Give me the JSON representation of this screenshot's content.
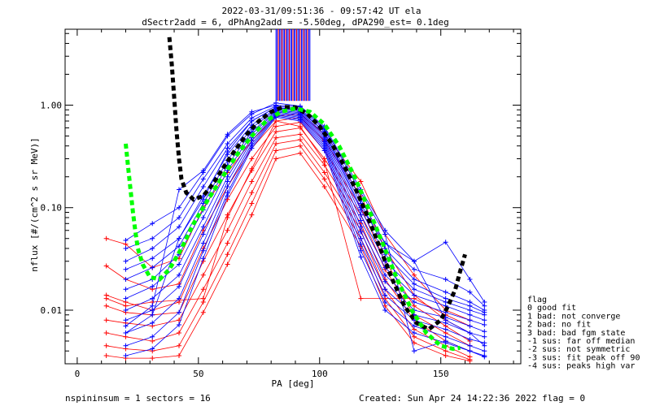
{
  "title_line1": "2022-03-31/09:51:36 - 09:57:42 UT ela",
  "title_line2": "dSectr2add = 6, dPhAng2add = -5.50deg, dPA290_est=   0.1deg",
  "footer_left": "nspininsum =  1  sectors = 16",
  "footer_right": "Created: Sun Apr 24 14:22:36 2022   flag = 0",
  "flag_legend": [
    "flag",
    " 0 good fit",
    " 1 bad: not converge",
    " 2 bad: no fit",
    " 3 bad: bad fgm state",
    "-1 sus: far off median",
    "-2 sus: not symmetric",
    "-3 sus: fit peak off 90",
    "-4 sus: peaks high var"
  ],
  "colors": {
    "red": "#ff0000",
    "blue": "#0000ff",
    "black": "#000000",
    "green": "#00ff00"
  },
  "chart_data": {
    "type": "line",
    "xlabel": "PA [deg]",
    "ylabel": "nflux [#/(cm^2 s sr MeV)]",
    "xlim": [
      -5,
      183
    ],
    "ylim": [
      0.003,
      5.5
    ],
    "yscale": "log",
    "xticks": [
      0,
      50,
      100,
      150
    ],
    "yticks": [
      0.01,
      0.1,
      1.0
    ],
    "ytick_labels": [
      "0.01",
      "0.10",
      "1.00"
    ],
    "series": [
      {
        "color": "red",
        "x": [
          12,
          20,
          31,
          42,
          52,
          62,
          72,
          82,
          92,
          102,
          117,
          127,
          139,
          152,
          162
        ],
        "y": [
          0.05,
          0.044,
          0.026,
          0.032,
          0.1,
          0.22,
          0.45,
          0.78,
          0.82,
          0.52,
          0.18,
          0.055,
          0.022,
          0.01,
          0.008
        ]
      },
      {
        "color": "red",
        "x": [
          12,
          20,
          31,
          42,
          52,
          62,
          72,
          82,
          92,
          102,
          117,
          127,
          139,
          152,
          162
        ],
        "y": [
          0.027,
          0.02,
          0.016,
          0.018,
          0.06,
          0.16,
          0.38,
          0.7,
          0.76,
          0.45,
          0.13,
          0.04,
          0.014,
          0.008,
          0.006
        ]
      },
      {
        "color": "red",
        "x": [
          12,
          20,
          31,
          42,
          52,
          62,
          72,
          82,
          92,
          102,
          117,
          127,
          139,
          152,
          162
        ],
        "y": [
          0.014,
          0.012,
          0.01,
          0.012,
          0.04,
          0.12,
          0.3,
          0.62,
          0.68,
          0.36,
          0.1,
          0.03,
          0.011,
          0.007,
          0.005
        ]
      },
      {
        "color": "red",
        "x": [
          12,
          20,
          31,
          42,
          52,
          62,
          72,
          82,
          92,
          102,
          117,
          127,
          139,
          152,
          162
        ],
        "y": [
          0.011,
          0.0095,
          0.009,
          0.0095,
          0.03,
          0.085,
          0.23,
          0.55,
          0.6,
          0.3,
          0.085,
          0.025,
          0.009,
          0.006,
          0.0045
        ]
      },
      {
        "color": "red",
        "x": [
          12,
          20,
          31,
          42,
          52,
          62,
          72,
          82,
          92,
          102,
          117,
          127,
          139,
          152,
          162
        ],
        "y": [
          0.008,
          0.0075,
          0.007,
          0.008,
          0.022,
          0.06,
          0.18,
          0.48,
          0.52,
          0.26,
          0.07,
          0.02,
          0.008,
          0.005,
          0.004
        ]
      },
      {
        "color": "red",
        "x": [
          12,
          20,
          31,
          42,
          52,
          62,
          72,
          82,
          92,
          102,
          117,
          127,
          139,
          152,
          162
        ],
        "y": [
          0.006,
          0.0055,
          0.005,
          0.006,
          0.016,
          0.045,
          0.14,
          0.42,
          0.46,
          0.22,
          0.06,
          0.016,
          0.0065,
          0.0045,
          0.0035
        ]
      },
      {
        "color": "red",
        "x": [
          12,
          20,
          31,
          42,
          52,
          62,
          72,
          82,
          92,
          102,
          117,
          127,
          139,
          152,
          162
        ],
        "y": [
          0.0045,
          0.0042,
          0.004,
          0.0045,
          0.012,
          0.035,
          0.11,
          0.36,
          0.4,
          0.19,
          0.05,
          0.013,
          0.0055,
          0.004,
          0.0033
        ]
      },
      {
        "color": "red",
        "x": [
          12,
          20,
          31,
          42,
          52,
          62,
          72,
          82,
          92,
          102,
          117,
          127,
          139,
          152,
          162
        ],
        "y": [
          0.0036,
          0.0034,
          0.0034,
          0.0036,
          0.0095,
          0.028,
          0.085,
          0.3,
          0.34,
          0.16,
          0.042,
          0.011,
          0.0048,
          0.0036,
          0.0032
        ]
      },
      {
        "color": "red",
        "x": [
          12,
          20,
          31,
          52,
          62,
          72,
          82,
          92,
          102,
          117,
          139,
          152,
          162
        ],
        "y": [
          0.013,
          0.011,
          0.012,
          0.013,
          0.08,
          0.24,
          0.7,
          0.62,
          0.28,
          0.013,
          0.013,
          0.009,
          0.007
        ]
      },
      {
        "color": "blue",
        "x": [
          20,
          31,
          42,
          52,
          62,
          72,
          82,
          92,
          102,
          117,
          127,
          139,
          152,
          162,
          168
        ],
        "y": [
          0.048,
          0.07,
          0.1,
          0.22,
          0.5,
          0.82,
          1.05,
          0.98,
          0.62,
          0.15,
          0.06,
          0.03,
          0.046,
          0.02,
          0.012
        ]
      },
      {
        "color": "blue",
        "x": [
          20,
          31,
          42,
          52,
          62,
          72,
          82,
          92,
          102,
          117,
          127,
          139,
          152,
          162,
          168
        ],
        "y": [
          0.04,
          0.05,
          0.08,
          0.19,
          0.42,
          0.75,
          0.98,
          0.92,
          0.58,
          0.12,
          0.045,
          0.025,
          0.02,
          0.015,
          0.011
        ]
      },
      {
        "color": "blue",
        "x": [
          20,
          31,
          42,
          52,
          62,
          72,
          82,
          92,
          102,
          117,
          127,
          139,
          152,
          162,
          168
        ],
        "y": [
          0.03,
          0.04,
          0.065,
          0.16,
          0.38,
          0.7,
          0.95,
          0.9,
          0.55,
          0.11,
          0.04,
          0.02,
          0.015,
          0.012,
          0.01
        ]
      },
      {
        "color": "blue",
        "x": [
          20,
          31,
          42,
          52,
          62,
          72,
          82,
          92,
          102,
          117,
          127,
          139,
          152,
          162,
          168
        ],
        "y": [
          0.025,
          0.032,
          0.05,
          0.13,
          0.33,
          0.64,
          0.92,
          0.86,
          0.52,
          0.095,
          0.035,
          0.018,
          0.013,
          0.011,
          0.0095
        ]
      },
      {
        "color": "blue",
        "x": [
          20,
          31,
          42,
          52,
          62,
          72,
          82,
          92,
          102,
          117,
          127,
          139,
          152,
          162,
          168
        ],
        "y": [
          0.02,
          0.026,
          0.042,
          0.11,
          0.29,
          0.6,
          0.9,
          0.84,
          0.5,
          0.085,
          0.03,
          0.016,
          0.012,
          0.01,
          0.009
        ]
      },
      {
        "color": "blue",
        "x": [
          20,
          31,
          42,
          52,
          62,
          72,
          82,
          92,
          102,
          117,
          127,
          139,
          152,
          162,
          168
        ],
        "y": [
          0.016,
          0.02,
          0.035,
          0.095,
          0.26,
          0.55,
          0.88,
          0.82,
          0.48,
          0.075,
          0.026,
          0.014,
          0.011,
          0.009,
          0.008
        ]
      },
      {
        "color": "blue",
        "x": [
          20,
          31,
          42,
          52,
          62,
          72,
          82,
          92,
          102,
          117,
          127,
          139,
          152,
          162,
          168
        ],
        "y": [
          0.013,
          0.017,
          0.028,
          0.08,
          0.23,
          0.52,
          0.86,
          0.8,
          0.46,
          0.065,
          0.022,
          0.012,
          0.0095,
          0.008,
          0.0072
        ]
      },
      {
        "color": "blue",
        "x": [
          20,
          31,
          42,
          52,
          62,
          72,
          82,
          92,
          102,
          117,
          127,
          139,
          152,
          162,
          168
        ],
        "y": [
          0.01,
          0.013,
          0.022,
          0.065,
          0.2,
          0.48,
          0.84,
          0.78,
          0.44,
          0.058,
          0.019,
          0.01,
          0.0085,
          0.007,
          0.0062
        ]
      },
      {
        "color": "blue",
        "x": [
          20,
          31,
          42,
          52,
          62,
          72,
          82,
          92,
          102,
          117,
          127,
          139,
          152,
          162,
          168
        ],
        "y": [
          0.008,
          0.01,
          0.017,
          0.055,
          0.18,
          0.45,
          0.82,
          0.76,
          0.42,
          0.05,
          0.016,
          0.009,
          0.0075,
          0.006,
          0.0055
        ]
      },
      {
        "color": "blue",
        "x": [
          20,
          31,
          42,
          52,
          62,
          72,
          82,
          92,
          102,
          117,
          127,
          139,
          152,
          162,
          168
        ],
        "y": [
          0.006,
          0.0075,
          0.013,
          0.045,
          0.16,
          0.42,
          0.8,
          0.74,
          0.4,
          0.044,
          0.014,
          0.008,
          0.0065,
          0.0052,
          0.0048
        ]
      },
      {
        "color": "blue",
        "x": [
          20,
          31,
          42,
          52,
          62,
          72,
          82,
          92,
          102,
          117,
          127,
          139,
          152,
          162,
          168
        ],
        "y": [
          0.0045,
          0.0055,
          0.0095,
          0.038,
          0.14,
          0.4,
          0.78,
          0.72,
          0.38,
          0.038,
          0.012,
          0.007,
          0.0055,
          0.0045,
          0.004
        ]
      },
      {
        "color": "blue",
        "x": [
          20,
          31,
          42,
          52,
          62,
          72,
          82,
          92,
          102,
          117,
          127,
          139,
          152,
          162,
          168
        ],
        "y": [
          0.0036,
          0.0042,
          0.0072,
          0.032,
          0.13,
          0.38,
          0.76,
          0.7,
          0.36,
          0.033,
          0.01,
          0.006,
          0.0048,
          0.004,
          0.0036
        ]
      },
      {
        "color": "blue",
        "x": [
          20,
          31,
          42,
          52,
          62,
          72,
          82,
          92,
          102,
          117,
          127,
          139,
          152,
          162,
          168
        ],
        "y": [
          0.006,
          0.009,
          0.05,
          0.12,
          0.35,
          0.7,
          0.95,
          0.88,
          0.55,
          0.1,
          0.045,
          0.03,
          0.008,
          0.006,
          0.0045
        ]
      },
      {
        "color": "blue",
        "x": [
          20,
          31,
          42,
          52,
          62,
          72,
          82,
          92,
          102,
          117,
          127,
          139,
          152,
          162,
          168
        ],
        "y": [
          0.007,
          0.011,
          0.15,
          0.23,
          0.52,
          0.86,
          1.0,
          0.96,
          0.6,
          0.14,
          0.055,
          0.004,
          0.005,
          0.004,
          0.0035
        ]
      }
    ],
    "fits": [
      {
        "color": "black",
        "x": [
          38,
          39,
          40,
          41,
          42,
          43,
          45,
          48,
          52,
          56,
          60,
          65,
          70,
          75,
          80,
          85,
          90,
          95,
          100,
          105,
          110,
          115,
          120,
          125,
          130,
          135,
          140,
          145,
          150,
          153,
          156,
          158,
          160
        ],
        "y": [
          4.6,
          2.5,
          1.2,
          0.55,
          0.3,
          0.19,
          0.14,
          0.12,
          0.13,
          0.17,
          0.24,
          0.36,
          0.52,
          0.7,
          0.86,
          0.96,
          0.95,
          0.82,
          0.62,
          0.42,
          0.26,
          0.15,
          0.08,
          0.04,
          0.02,
          0.011,
          0.0075,
          0.0065,
          0.008,
          0.011,
          0.016,
          0.024,
          0.035
        ]
      },
      {
        "color": "green",
        "x": [
          20,
          21,
          22,
          23,
          24,
          25,
          27,
          30,
          34,
          38,
          43,
          48,
          54,
          60,
          66,
          72,
          78,
          84,
          90,
          96,
          102,
          108,
          114,
          120,
          126,
          132,
          138,
          144,
          150,
          155,
          158
        ],
        "y": [
          0.42,
          0.25,
          0.15,
          0.09,
          0.058,
          0.04,
          0.028,
          0.021,
          0.02,
          0.025,
          0.04,
          0.07,
          0.12,
          0.2,
          0.33,
          0.5,
          0.7,
          0.86,
          0.93,
          0.86,
          0.65,
          0.4,
          0.21,
          0.1,
          0.045,
          0.02,
          0.01,
          0.006,
          0.0045,
          0.0042,
          0.0043
        ]
      }
    ],
    "spikes": {
      "color_a": "blue",
      "color_b": "red",
      "x_start": 82,
      "x_end": 96,
      "y_base": 1.1
    }
  }
}
